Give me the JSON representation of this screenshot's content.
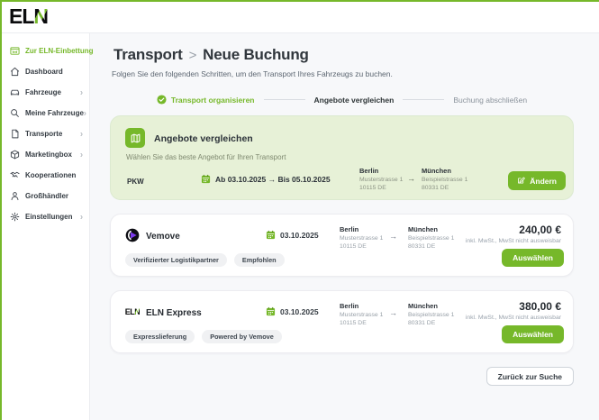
{
  "brand": {
    "logo_text": "ELN",
    "accent_color": "#76b82a"
  },
  "sidebar": {
    "items": [
      {
        "label": "Zur ELN-Einbettung",
        "icon": "embed",
        "active": true,
        "chevron": false
      },
      {
        "label": "Dashboard",
        "icon": "home",
        "active": false,
        "chevron": false
      },
      {
        "label": "Fahrzeuge",
        "icon": "car",
        "active": false,
        "chevron": true
      },
      {
        "label": "Meine Fahrzeuge",
        "icon": "search",
        "active": false,
        "chevron": true
      },
      {
        "label": "Transporte",
        "icon": "document",
        "active": false,
        "chevron": true
      },
      {
        "label": "Marketingbox",
        "icon": "box",
        "active": false,
        "chevron": true
      },
      {
        "label": "Kooperationen",
        "icon": "handshake",
        "active": false,
        "chevron": false
      },
      {
        "label": "Großhändler",
        "icon": "person",
        "active": false,
        "chevron": false
      },
      {
        "label": "Einstellungen",
        "icon": "gear",
        "active": false,
        "chevron": true
      }
    ]
  },
  "header": {
    "breadcrumb_section": "Transport",
    "breadcrumb_separator": ">",
    "breadcrumb_page": "Neue Buchung",
    "subtitle": "Folgen Sie den folgenden Schritten, um den Transport Ihres Fahrzeugs zu buchen."
  },
  "stepper": {
    "steps": [
      {
        "label": "Transport organisieren",
        "state": "done"
      },
      {
        "label": "Angebote vergleichen",
        "state": "current"
      },
      {
        "label": "Buchung abschließen",
        "state": "upcoming"
      }
    ]
  },
  "summary_card": {
    "title": "Angebote vergleichen",
    "subtitle": "Wählen Sie das beste Angebot für Ihren Transport",
    "vehicle": "PKW",
    "date_range": "Ab 03.10.2025 → Bis 05.10.2025",
    "from": {
      "city": "Berlin",
      "street": "Musterstrasse 1",
      "zip": "10115 DE"
    },
    "arrow": "→",
    "to": {
      "city": "München",
      "street": "Beispielstrasse 1",
      "zip": "80331 DE"
    },
    "edit_label": "Ändern"
  },
  "offers": [
    {
      "name": "Vemove",
      "logo": "vemove",
      "date": "03.10.2025",
      "from": {
        "city": "Berlin",
        "street": "Musterstrasse 1",
        "zip": "10115 DE"
      },
      "arrow": "→",
      "to": {
        "city": "München",
        "street": "Beispielstrasse 1",
        "zip": "80331 DE"
      },
      "price": "240,00 €",
      "price_note": "inkl. MwSt., MwSt nicht ausweisbar",
      "badges": [
        "Verifizierter Logistikpartner",
        "Empfohlen"
      ],
      "select_label": "Auswählen"
    },
    {
      "name": "ELN Express",
      "logo": "eln",
      "date": "03.10.2025",
      "from": {
        "city": "Berlin",
        "street": "Musterstrasse 1",
        "zip": "10115 DE"
      },
      "arrow": "→",
      "to": {
        "city": "München",
        "street": "Beispielstrasse 1",
        "zip": "80331 DE"
      },
      "price": "380,00 €",
      "price_note": "inkl. MwSt., MwSt nicht ausweisbar",
      "badges": [
        "Expresslieferung",
        "Powered by Vemove"
      ],
      "select_label": "Auswählen"
    }
  ],
  "footer": {
    "back_label": "Zurück zur Suche"
  }
}
